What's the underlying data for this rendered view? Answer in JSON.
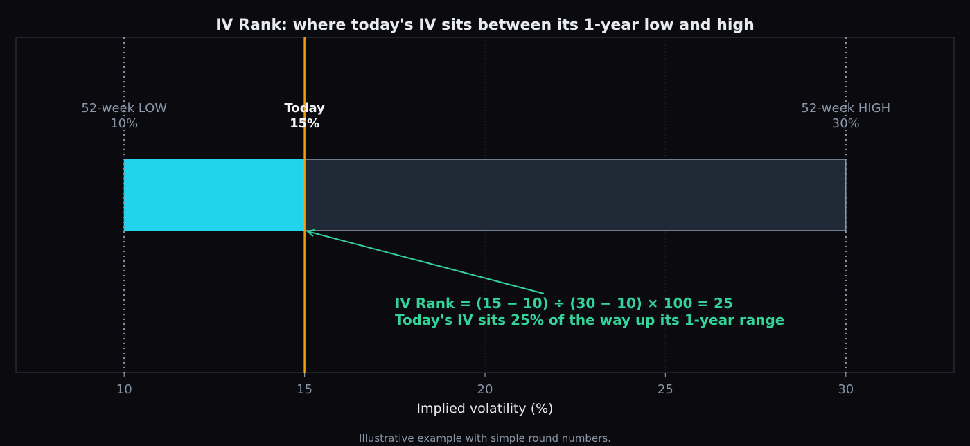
{
  "chart_data": {
    "type": "bar",
    "title": "IV Rank: where today's IV sits between its 1-year low and high",
    "xlabel": "Implied volatility (%)",
    "xlim": [
      7,
      33
    ],
    "xticks": [
      10,
      15,
      20,
      25,
      30
    ],
    "grid": "vertical dotted",
    "range_low": 10,
    "range_high": 30,
    "today": 15,
    "filled_segment": [
      10,
      15
    ],
    "unfilled_segment": [
      15,
      30
    ],
    "iv_rank": 25,
    "markers": [
      {
        "name": "low",
        "label_line1": "52-week LOW",
        "label_line2": "10%",
        "value": 10
      },
      {
        "name": "today",
        "label_line1": "Today",
        "label_line2": "15%",
        "value": 15
      },
      {
        "name": "high",
        "label_line1": "52-week HIGH",
        "label_line2": "30%",
        "value": 30
      }
    ],
    "annotation": {
      "line1": "IV Rank = (15 − 10) ÷ (30 − 10) × 100 = 25",
      "line2": "Today's IV sits 25% of the way up its 1-year range"
    },
    "footnote": "Illustrative example with simple round numbers."
  },
  "colors": {
    "background": "#0a0a0f",
    "filled": "#22d3ee",
    "unfilled": "#1f2a36",
    "bar_edge": "#8b97a6",
    "today_line": "#f59e0b",
    "range_lines": "#8b97a6",
    "annotation": "#34d399",
    "frame": "#262b33"
  }
}
